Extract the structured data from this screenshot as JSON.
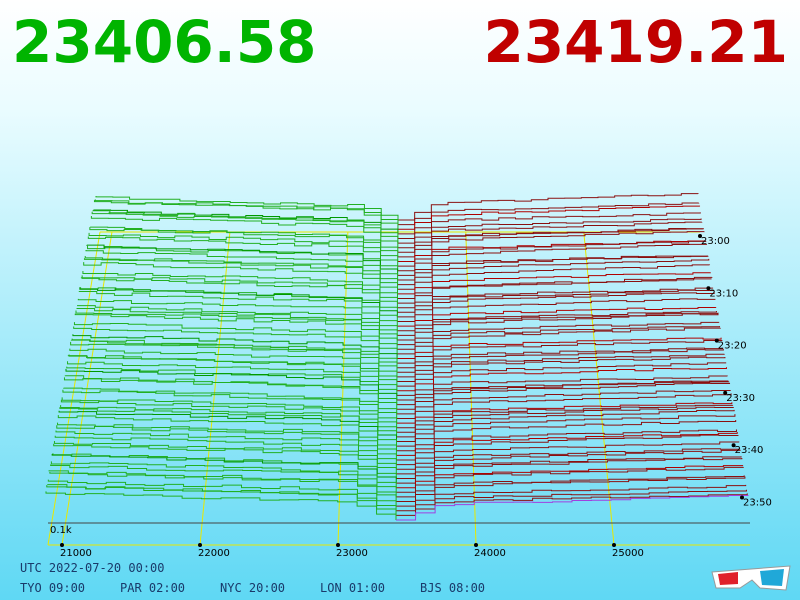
{
  "header": {
    "bid": "23406.58",
    "ask": "23419.21"
  },
  "axis": {
    "price_labels": [
      "21000",
      "22000",
      "23000",
      "24000",
      "25000"
    ],
    "time_labels": [
      "23:00",
      "23:10",
      "23:20",
      "23:30",
      "23:40",
      "23:50"
    ],
    "depth_label": "0.1k"
  },
  "footer": {
    "utc": "UTC 2022-07-20 00:00",
    "zones": [
      "TYO 09:00",
      "PAR 02:00",
      "NYC 20:00",
      "LON 01:00",
      "BJS 08:00"
    ]
  }
}
